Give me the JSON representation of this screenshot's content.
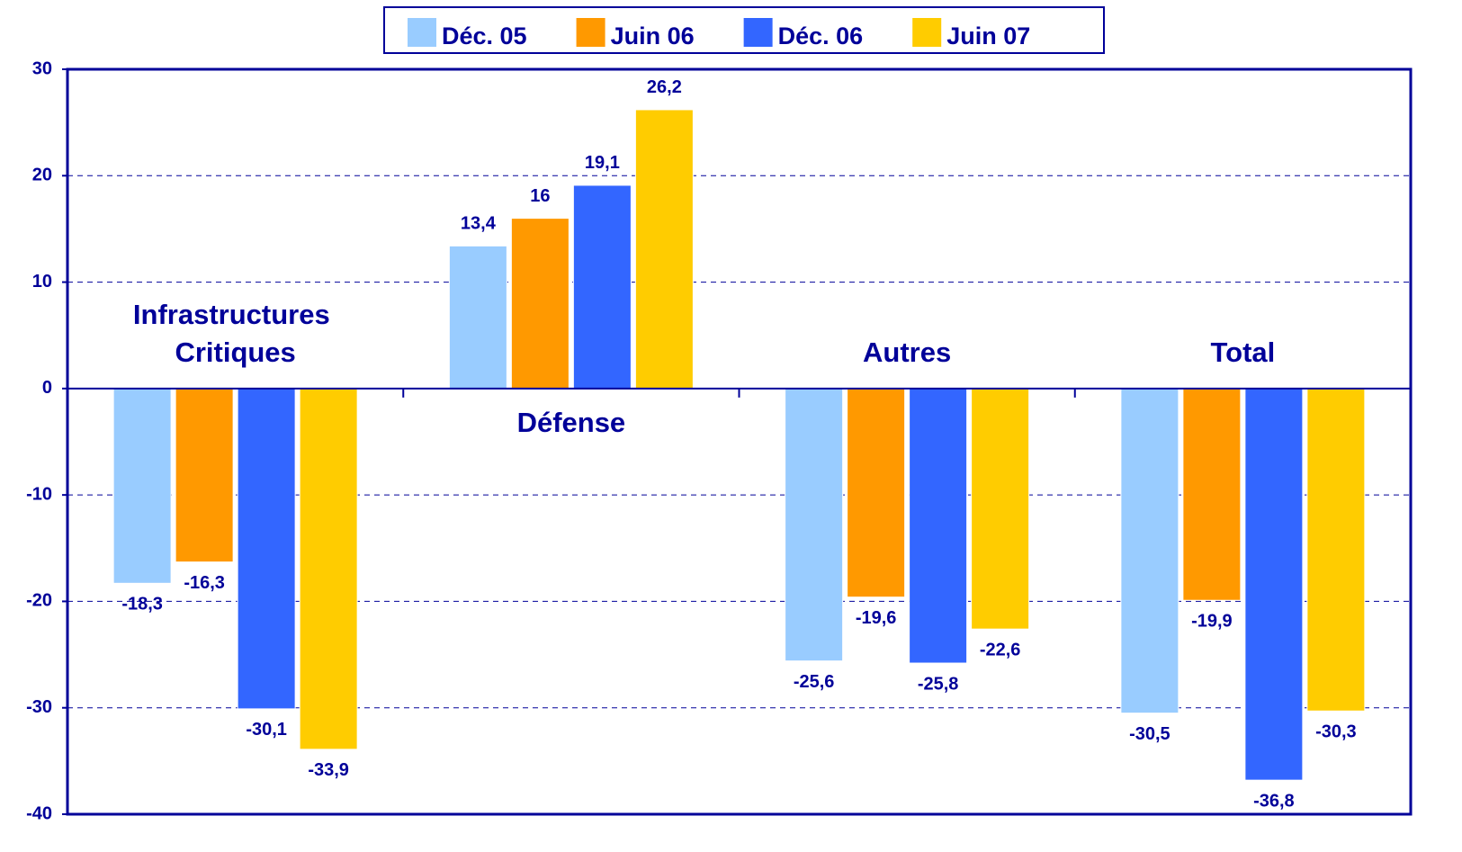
{
  "chart_data": {
    "type": "bar",
    "categories": [
      "Infrastructures Critiques",
      "Défense",
      "Autres",
      "Total"
    ],
    "series": [
      {
        "name": "Déc. 05",
        "color": "#99ccff",
        "values": [
          -18.3,
          13.4,
          -25.6,
          -30.5
        ],
        "value_labels": [
          "-18,3",
          "13,4",
          "-25,6",
          "-30,5"
        ]
      },
      {
        "name": "Juin 06",
        "color": "#ff9900",
        "values": [
          -16.3,
          16,
          -19.6,
          -19.9
        ],
        "value_labels": [
          "-16,3",
          "16",
          "-19,6",
          "-19,9"
        ]
      },
      {
        "name": "Déc. 06",
        "color": "#3366ff",
        "values": [
          -30.1,
          19.1,
          -25.8,
          -36.8
        ],
        "value_labels": [
          "-30,1",
          "19,1",
          "-25,8",
          "-36,8"
        ]
      },
      {
        "name": "Juin 07",
        "color": "#ffcc00",
        "values": [
          -33.9,
          26.2,
          -22.6,
          -30.3
        ],
        "value_labels": [
          "-33,9",
          "26,2",
          "-22,6",
          "-30,3"
        ]
      }
    ],
    "ylim": [
      -40,
      30
    ],
    "yticks": [
      -40,
      -30,
      -20,
      -10,
      0,
      10,
      20,
      30
    ],
    "grid": true,
    "legend": "top"
  }
}
